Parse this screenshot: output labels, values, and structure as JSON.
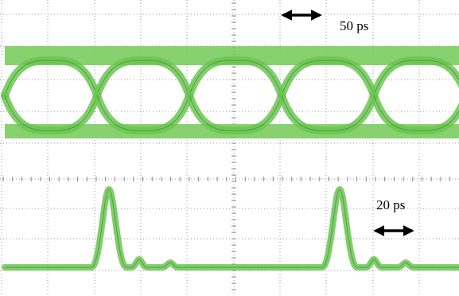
{
  "labels": {
    "top_scale": "50 ps",
    "bottom_scale": "20 ps"
  }
}
